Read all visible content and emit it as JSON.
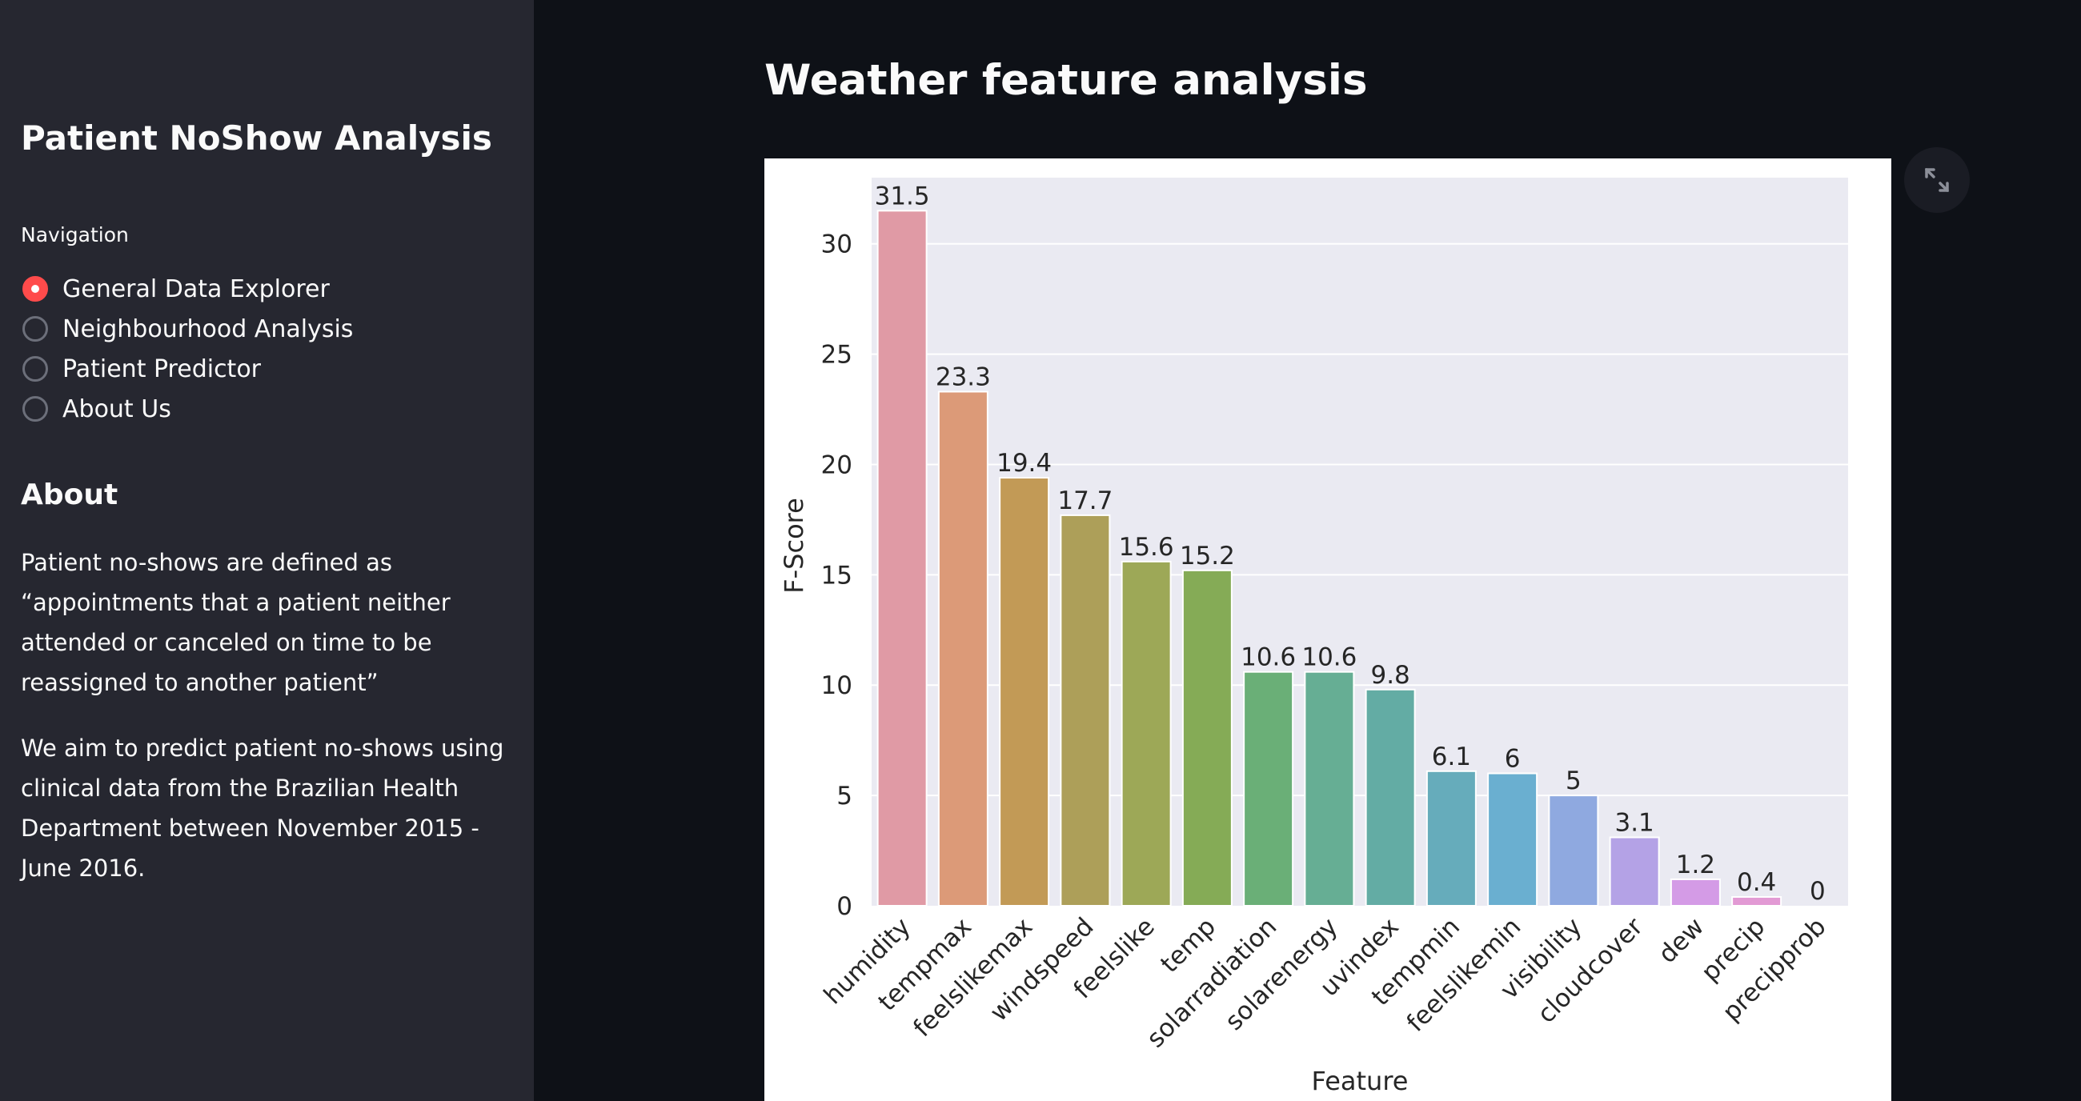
{
  "sidebar": {
    "title": "Patient NoShow Analysis",
    "nav_label": "Navigation",
    "nav_items": [
      {
        "label": "General Data Explorer",
        "selected": true
      },
      {
        "label": "Neighbourhood Analysis",
        "selected": false
      },
      {
        "label": "Patient Predictor",
        "selected": false
      },
      {
        "label": "About Us",
        "selected": false
      }
    ],
    "about_heading": "About",
    "about_p1": "Patient no-shows are defined as “appointments that a patient neither attended or canceled on time to be reassigned to another patient”",
    "about_p2": "We aim to predict patient no-shows using clinical data from the Brazilian Health Department between November 2015 - June 2016."
  },
  "main": {
    "title": "Weather feature analysis",
    "fullscreen_icon": "expand-icon"
  },
  "colors": {
    "sidebar_bg": "#262730",
    "main_bg": "#0e1117",
    "accent": "#ff4b4b",
    "plot_bg": "#eaeaf2"
  },
  "chart_data": {
    "type": "bar",
    "xlabel": "Feature",
    "ylabel": "F-Score",
    "ylim": [
      0,
      33
    ],
    "yticks": [
      0,
      5,
      10,
      15,
      20,
      25,
      30
    ],
    "grid": true,
    "categories": [
      "humidity",
      "tempmax",
      "feelslikemax",
      "windspeed",
      "feelslike",
      "temp",
      "solarradiation",
      "solarenergy",
      "uvindex",
      "tempmin",
      "feelslikemin",
      "visibility",
      "cloudcover",
      "dew",
      "precip",
      "precipprob"
    ],
    "values": [
      31.5,
      23.3,
      19.4,
      17.7,
      15.6,
      15.2,
      10.6,
      10.6,
      9.8,
      6.1,
      6,
      5,
      3.1,
      1.2,
      0.4,
      0
    ],
    "value_labels": [
      "31.5",
      "23.3",
      "19.4",
      "17.7",
      "15.6",
      "15.2",
      "10.6",
      "10.6",
      "9.8",
      "6.1",
      "6",
      "5",
      "3.1",
      "1.2",
      "0.4",
      "0"
    ],
    "bar_colors": [
      "#e09aa5",
      "#dc9a78",
      "#c29a56",
      "#ad9f59",
      "#9da857",
      "#85ab56",
      "#6aaf77",
      "#66ae94",
      "#63aca4",
      "#66acbb",
      "#6aafd0",
      "#8fa9e0",
      "#b4a2e6",
      "#d49be6",
      "#e29ad4",
      "#e39ab8"
    ]
  }
}
